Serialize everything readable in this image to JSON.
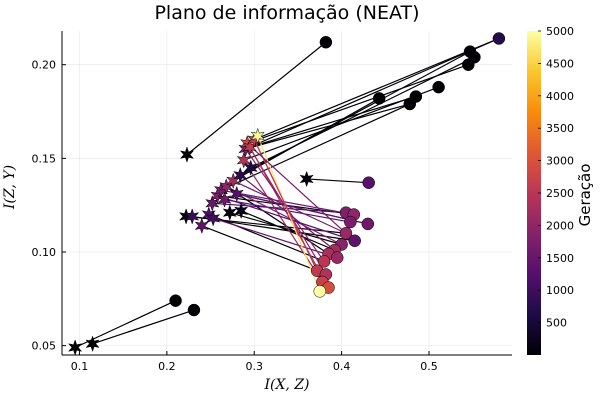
{
  "chart_data": {
    "type": "scatter",
    "title": "Plano de informação (NEAT)",
    "xlabel": "I(X, Z)",
    "ylabel": "I(Z, Y)",
    "xlim": [
      0.08,
      0.595
    ],
    "ylim": [
      0.045,
      0.218
    ],
    "xticks": [
      {
        "value": 0.1,
        "label": "0.1"
      },
      {
        "value": 0.2,
        "label": "0.2"
      },
      {
        "value": 0.3,
        "label": "0.3"
      },
      {
        "value": 0.4,
        "label": "0.4"
      },
      {
        "value": 0.5,
        "label": "0.5"
      }
    ],
    "yticks": [
      {
        "value": 0.05,
        "label": "0.05"
      },
      {
        "value": 0.1,
        "label": "0.10"
      },
      {
        "value": 0.15,
        "label": "0.15"
      },
      {
        "value": 0.2,
        "label": "0.20"
      }
    ],
    "grid": true,
    "colorbar": {
      "label": "Geração",
      "colormap": "inferno",
      "min": 0,
      "max": 5000,
      "ticks": [
        {
          "value": 500,
          "label": "500"
        },
        {
          "value": 1000,
          "label": "1000"
        },
        {
          "value": 1500,
          "label": "1500"
        },
        {
          "value": 2000,
          "label": "2000"
        },
        {
          "value": 2500,
          "label": "2500"
        },
        {
          "value": 3000,
          "label": "3000"
        },
        {
          "value": 3500,
          "label": "3500"
        },
        {
          "value": 4000,
          "label": "4000"
        },
        {
          "value": 4500,
          "label": "4500"
        },
        {
          "value": 5000,
          "label": "5000"
        }
      ]
    },
    "series": [
      {
        "marker": "star",
        "note": "start points",
        "points": [
          {
            "x": 0.095,
            "y": 0.049,
            "gen": 0
          },
          {
            "x": 0.115,
            "y": 0.051,
            "gen": 0
          },
          {
            "x": 0.223,
            "y": 0.152,
            "gen": 0
          },
          {
            "x": 0.222,
            "y": 0.119,
            "gen": 100
          },
          {
            "x": 0.229,
            "y": 0.119,
            "gen": 900
          },
          {
            "x": 0.24,
            "y": 0.114,
            "gen": 1400
          },
          {
            "x": 0.248,
            "y": 0.12,
            "gen": 1200
          },
          {
            "x": 0.252,
            "y": 0.126,
            "gen": 1500
          },
          {
            "x": 0.258,
            "y": 0.13,
            "gen": 1800
          },
          {
            "x": 0.262,
            "y": 0.133,
            "gen": 1700
          },
          {
            "x": 0.268,
            "y": 0.135,
            "gen": 2000
          },
          {
            "x": 0.272,
            "y": 0.121,
            "gen": 100
          },
          {
            "x": 0.276,
            "y": 0.138,
            "gen": 2200
          },
          {
            "x": 0.28,
            "y": 0.131,
            "gen": 1300
          },
          {
            "x": 0.284,
            "y": 0.141,
            "gen": 800
          },
          {
            "x": 0.285,
            "y": 0.122,
            "gen": 200
          },
          {
            "x": 0.288,
            "y": 0.149,
            "gen": 2400
          },
          {
            "x": 0.29,
            "y": 0.155,
            "gen": 1800
          },
          {
            "x": 0.292,
            "y": 0.158,
            "gen": 2800
          },
          {
            "x": 0.295,
            "y": 0.156,
            "gen": 2600
          },
          {
            "x": 0.3,
            "y": 0.16,
            "gen": 2600
          },
          {
            "x": 0.304,
            "y": 0.162,
            "gen": 4900
          },
          {
            "x": 0.296,
            "y": 0.145,
            "gen": 600
          },
          {
            "x": 0.36,
            "y": 0.139,
            "gen": 100
          },
          {
            "x": 0.253,
            "y": 0.118,
            "gen": 1000
          },
          {
            "x": 0.266,
            "y": 0.128,
            "gen": 1600
          }
        ]
      },
      {
        "marker": "circle",
        "note": "end points",
        "points": [
          {
            "x": 0.21,
            "y": 0.074,
            "gen": 0
          },
          {
            "x": 0.231,
            "y": 0.069,
            "gen": 0
          },
          {
            "x": 0.382,
            "y": 0.212,
            "gen": 0
          },
          {
            "x": 0.443,
            "y": 0.182,
            "gen": 0
          },
          {
            "x": 0.478,
            "y": 0.179,
            "gen": 0
          },
          {
            "x": 0.485,
            "y": 0.183,
            "gen": 0
          },
          {
            "x": 0.511,
            "y": 0.188,
            "gen": 0
          },
          {
            "x": 0.545,
            "y": 0.2,
            "gen": 0
          },
          {
            "x": 0.547,
            "y": 0.207,
            "gen": 0
          },
          {
            "x": 0.552,
            "y": 0.204,
            "gen": 0
          },
          {
            "x": 0.58,
            "y": 0.214,
            "gen": 700
          },
          {
            "x": 0.431,
            "y": 0.137,
            "gen": 1300
          },
          {
            "x": 0.43,
            "y": 0.115,
            "gen": 1600
          },
          {
            "x": 0.405,
            "y": 0.121,
            "gen": 1800
          },
          {
            "x": 0.414,
            "y": 0.12,
            "gen": 2000
          },
          {
            "x": 0.41,
            "y": 0.116,
            "gen": 1700
          },
          {
            "x": 0.405,
            "y": 0.11,
            "gen": 2100
          },
          {
            "x": 0.415,
            "y": 0.106,
            "gen": 1400
          },
          {
            "x": 0.4,
            "y": 0.104,
            "gen": 1900
          },
          {
            "x": 0.392,
            "y": 0.101,
            "gen": 2200
          },
          {
            "x": 0.385,
            "y": 0.099,
            "gen": 2300
          },
          {
            "x": 0.38,
            "y": 0.095,
            "gen": 2500
          },
          {
            "x": 0.395,
            "y": 0.097,
            "gen": 2100
          },
          {
            "x": 0.372,
            "y": 0.09,
            "gen": 2600
          },
          {
            "x": 0.382,
            "y": 0.088,
            "gen": 2400
          },
          {
            "x": 0.378,
            "y": 0.084,
            "gen": 2700
          },
          {
            "x": 0.385,
            "y": 0.081,
            "gen": 2900
          },
          {
            "x": 0.375,
            "y": 0.079,
            "gen": 5000
          }
        ]
      }
    ],
    "segments": [
      {
        "x1": 0.095,
        "y1": 0.049,
        "x2": 0.21,
        "y2": 0.074,
        "gen": 0
      },
      {
        "x1": 0.115,
        "y1": 0.051,
        "x2": 0.231,
        "y2": 0.069,
        "gen": 0
      },
      {
        "x1": 0.223,
        "y1": 0.152,
        "x2": 0.382,
        "y2": 0.212,
        "gen": 0
      },
      {
        "x1": 0.29,
        "y1": 0.155,
        "x2": 0.58,
        "y2": 0.214,
        "gen": 0
      },
      {
        "x1": 0.3,
        "y1": 0.16,
        "x2": 0.58,
        "y2": 0.214,
        "gen": 0
      },
      {
        "x1": 0.284,
        "y1": 0.141,
        "x2": 0.547,
        "y2": 0.207,
        "gen": 0
      },
      {
        "x1": 0.296,
        "y1": 0.145,
        "x2": 0.552,
        "y2": 0.204,
        "gen": 0
      },
      {
        "x1": 0.292,
        "y1": 0.158,
        "x2": 0.545,
        "y2": 0.2,
        "gen": 0
      },
      {
        "x1": 0.288,
        "y1": 0.149,
        "x2": 0.511,
        "y2": 0.188,
        "gen": 0
      },
      {
        "x1": 0.295,
        "y1": 0.156,
        "x2": 0.485,
        "y2": 0.183,
        "gen": 0
      },
      {
        "x1": 0.29,
        "y1": 0.155,
        "x2": 0.478,
        "y2": 0.179,
        "gen": 0
      },
      {
        "x1": 0.276,
        "y1": 0.138,
        "x2": 0.443,
        "y2": 0.182,
        "gen": 0
      },
      {
        "x1": 0.262,
        "y1": 0.133,
        "x2": 0.478,
        "y2": 0.179,
        "gen": 0
      },
      {
        "x1": 0.36,
        "y1": 0.139,
        "x2": 0.431,
        "y2": 0.137,
        "gen": 100
      },
      {
        "x1": 0.272,
        "y1": 0.121,
        "x2": 0.4,
        "y2": 0.104,
        "gen": 0
      },
      {
        "x1": 0.285,
        "y1": 0.122,
        "x2": 0.392,
        "y2": 0.101,
        "gen": 0
      },
      {
        "x1": 0.222,
        "y1": 0.119,
        "x2": 0.405,
        "y2": 0.11,
        "gen": 0
      },
      {
        "x1": 0.229,
        "y1": 0.119,
        "x2": 0.415,
        "y2": 0.106,
        "gen": 0
      },
      {
        "x1": 0.28,
        "y1": 0.131,
        "x2": 0.43,
        "y2": 0.115,
        "gen": 0
      },
      {
        "x1": 0.268,
        "y1": 0.135,
        "x2": 0.385,
        "y2": 0.099,
        "gen": 0
      },
      {
        "x1": 0.248,
        "y1": 0.12,
        "x2": 0.38,
        "y2": 0.095,
        "gen": 0
      },
      {
        "x1": 0.258,
        "y1": 0.13,
        "x2": 0.414,
        "y2": 0.12,
        "gen": 0
      },
      {
        "x1": 0.24,
        "y1": 0.114,
        "x2": 0.372,
        "y2": 0.09,
        "gen": 0
      },
      {
        "x1": 0.252,
        "y1": 0.126,
        "x2": 0.405,
        "y2": 0.121,
        "gen": 1000
      },
      {
        "x1": 0.266,
        "y1": 0.128,
        "x2": 0.41,
        "y2": 0.116,
        "gen": 1200
      },
      {
        "x1": 0.262,
        "y1": 0.133,
        "x2": 0.414,
        "y2": 0.12,
        "gen": 1500
      },
      {
        "x1": 0.276,
        "y1": 0.138,
        "x2": 0.405,
        "y2": 0.11,
        "gen": 1700
      },
      {
        "x1": 0.253,
        "y1": 0.118,
        "x2": 0.395,
        "y2": 0.097,
        "gen": 1400
      },
      {
        "x1": 0.292,
        "y1": 0.158,
        "x2": 0.382,
        "y2": 0.088,
        "gen": 1900
      },
      {
        "x1": 0.288,
        "y1": 0.149,
        "x2": 0.378,
        "y2": 0.084,
        "gen": 2100
      },
      {
        "x1": 0.295,
        "y1": 0.156,
        "x2": 0.385,
        "y2": 0.081,
        "gen": 2300
      },
      {
        "x1": 0.3,
        "y1": 0.16,
        "x2": 0.372,
        "y2": 0.09,
        "gen": 2200
      },
      {
        "x1": 0.29,
        "y1": 0.155,
        "x2": 0.38,
        "y2": 0.095,
        "gen": 1900
      },
      {
        "x1": 0.284,
        "y1": 0.141,
        "x2": 0.392,
        "y2": 0.101,
        "gen": 1600
      },
      {
        "x1": 0.268,
        "y1": 0.135,
        "x2": 0.4,
        "y2": 0.104,
        "gen": 1800
      },
      {
        "x1": 0.258,
        "y1": 0.13,
        "x2": 0.415,
        "y2": 0.106,
        "gen": 1300
      },
      {
        "x1": 0.28,
        "y1": 0.131,
        "x2": 0.43,
        "y2": 0.115,
        "gen": 1400
      },
      {
        "x1": 0.304,
        "y1": 0.162,
        "x2": 0.375,
        "y2": 0.079,
        "gen": 4700
      },
      {
        "x1": 0.3,
        "y1": 0.16,
        "x2": 0.378,
        "y2": 0.084,
        "gen": 2600
      },
      {
        "x1": 0.292,
        "y1": 0.158,
        "x2": 0.405,
        "y2": 0.11,
        "gen": 1700
      }
    ]
  }
}
